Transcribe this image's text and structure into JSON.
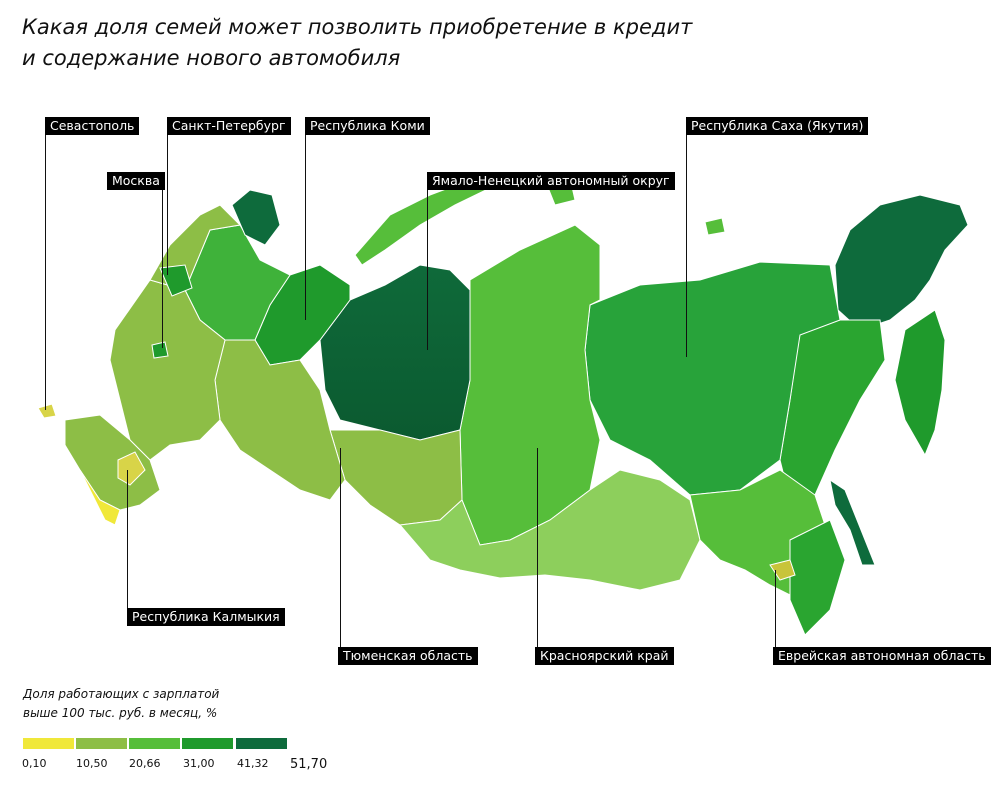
{
  "title": {
    "line1": "Какая доля семей может позволить приобретение в кредит",
    "line2": "и содержание нового автомобиля"
  },
  "callouts": [
    "Севастополь",
    "Санкт-Петербург",
    "Москва",
    "Республика Коми",
    "Ямало-Ненецкий автономный округ",
    "Республика Саха (Якутия)",
    "Республика Калмыкия",
    "Тюменская область",
    "Красноярский край",
    "Еврейская автономная область"
  ],
  "legend": {
    "title_line1": "Доля работающих с зарплатой",
    "title_line2": "выше 100 тыс. руб. в месяц, %",
    "ticks": [
      "0,10",
      "10,50",
      "20,66",
      "31,00",
      "41,32",
      "51,70"
    ],
    "colors": [
      "#f0e83a",
      "#8dbe46",
      "#56be3a",
      "#1f9a2c",
      "#0e6b3c"
    ]
  }
}
